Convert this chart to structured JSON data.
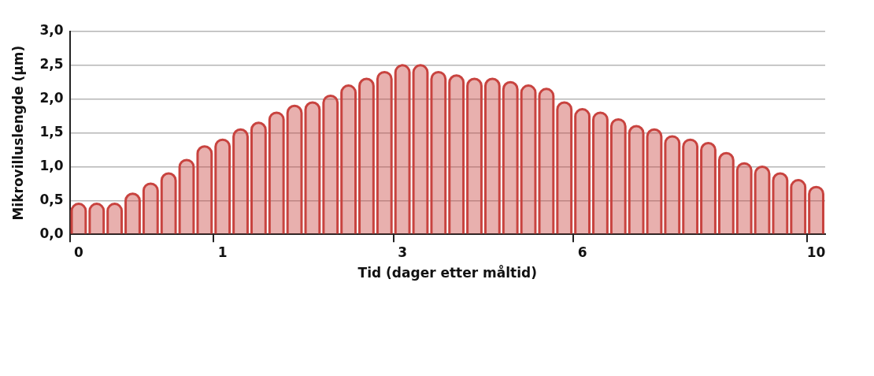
{
  "chart_data": {
    "type": "bar",
    "xlabel": "Tid (dager etter måltid)",
    "ylabel": "Mikrovilluslengde (µm)",
    "categories": [
      "0",
      null,
      null,
      null,
      null,
      null,
      null,
      null,
      "1",
      null,
      null,
      null,
      null,
      null,
      null,
      null,
      null,
      null,
      "3",
      null,
      null,
      null,
      null,
      null,
      null,
      null,
      null,
      null,
      "6",
      null,
      null,
      null,
      null,
      null,
      null,
      null,
      null,
      null,
      null,
      null,
      null,
      "10"
    ],
    "values": [
      0.45,
      0.45,
      0.45,
      0.6,
      0.75,
      0.9,
      1.1,
      1.3,
      1.4,
      1.55,
      1.65,
      1.8,
      1.9,
      1.95,
      2.05,
      2.2,
      2.3,
      2.4,
      2.5,
      2.5,
      2.4,
      2.35,
      2.3,
      2.3,
      2.25,
      2.2,
      2.15,
      1.95,
      1.85,
      1.8,
      1.7,
      1.6,
      1.55,
      1.45,
      1.4,
      1.35,
      1.2,
      1.05,
      1.0,
      0.9,
      0.8,
      0.7
    ],
    "color": "#c8433f",
    "ylim": [
      0,
      3
    ],
    "yticks": [
      {
        "value": 0,
        "label": "0,0"
      },
      {
        "value": 0.5,
        "label": "0,5"
      },
      {
        "value": 1,
        "label": "1,0"
      },
      {
        "value": 1.5,
        "label": "1,5"
      },
      {
        "value": 2,
        "label": "2,0"
      },
      {
        "value": 2.5,
        "label": "2,5"
      },
      {
        "value": 3,
        "label": "3,0"
      }
    ],
    "grid": "y"
  }
}
